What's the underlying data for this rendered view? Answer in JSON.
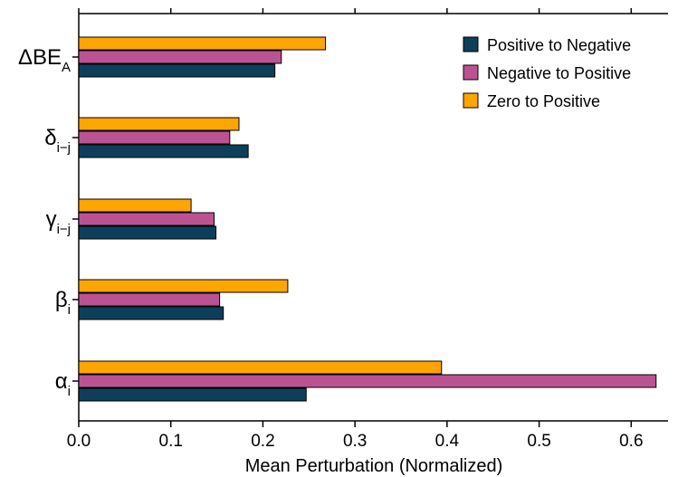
{
  "chart_data": {
    "type": "bar",
    "orientation": "horizontal",
    "title": "",
    "xlabel": "Mean Perturbation (Normalized)",
    "ylabel": "",
    "xlim": [
      0,
      0.64
    ],
    "x_ticks": [
      "0.0",
      "0.1",
      "0.2",
      "0.3",
      "0.4",
      "0.5",
      "0.6"
    ],
    "categories": [
      {
        "base": "ΔBE",
        "sub": "A"
      },
      {
        "base": "δ",
        "sub": "i−j"
      },
      {
        "base": "γ",
        "sub": "i−j"
      },
      {
        "base": "β",
        "sub": "i"
      },
      {
        "base": "α",
        "sub": "i"
      }
    ],
    "series": [
      {
        "name": "Positive to Negative",
        "color": "#0d3f5a",
        "values": [
          0.213,
          0.184,
          0.149,
          0.157,
          0.247
        ]
      },
      {
        "name": "Negative to Positive",
        "color": "#bb5393",
        "values": [
          0.22,
          0.164,
          0.147,
          0.153,
          0.627
        ]
      },
      {
        "name": "Zero to Positive",
        "color": "#ffa500",
        "values": [
          0.268,
          0.174,
          0.122,
          0.227,
          0.394
        ]
      }
    ],
    "legend_position": "top-right",
    "grid": false
  }
}
